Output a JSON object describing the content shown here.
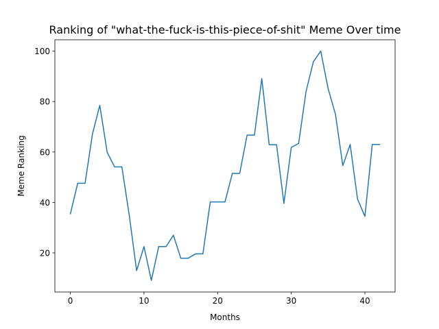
{
  "chart_data": {
    "type": "line",
    "title": "Ranking of \"what-the-fuck-is-this-piece-of-shit\" Meme Over time",
    "xlabel": "Months",
    "ylabel": "Meme Ranking",
    "xlim": [
      -2.1,
      44.1
    ],
    "ylim": [
      4.5,
      104.5
    ],
    "xticks": [
      0,
      10,
      20,
      30,
      40
    ],
    "yticks": [
      20,
      40,
      60,
      80,
      100
    ],
    "grid": false,
    "color": "#1f77b4",
    "series": [
      {
        "name": "",
        "x": [
          0,
          1,
          2,
          3,
          4,
          5,
          6,
          7,
          8,
          9,
          10,
          11,
          12,
          13,
          14,
          15,
          16,
          17,
          18,
          19,
          20,
          21,
          22,
          23,
          24,
          25,
          26,
          27,
          28,
          29,
          30,
          31,
          32,
          33,
          34,
          35,
          36,
          37,
          38,
          39,
          40,
          41,
          42
        ],
        "values": [
          35.5,
          47.6,
          47.6,
          67.1,
          78.5,
          59.9,
          54.1,
          54.1,
          34.9,
          13.0,
          22.5,
          9.1,
          22.5,
          22.5,
          27.0,
          17.9,
          17.9,
          19.6,
          19.6,
          40.2,
          40.2,
          40.2,
          51.5,
          51.5,
          66.7,
          66.7,
          89.1,
          62.9,
          62.9,
          39.6,
          61.8,
          63.4,
          83.9,
          95.8,
          100.0,
          85.2,
          75.0,
          54.6,
          63.0,
          41.3,
          34.5,
          63.0,
          63.0
        ]
      }
    ]
  }
}
